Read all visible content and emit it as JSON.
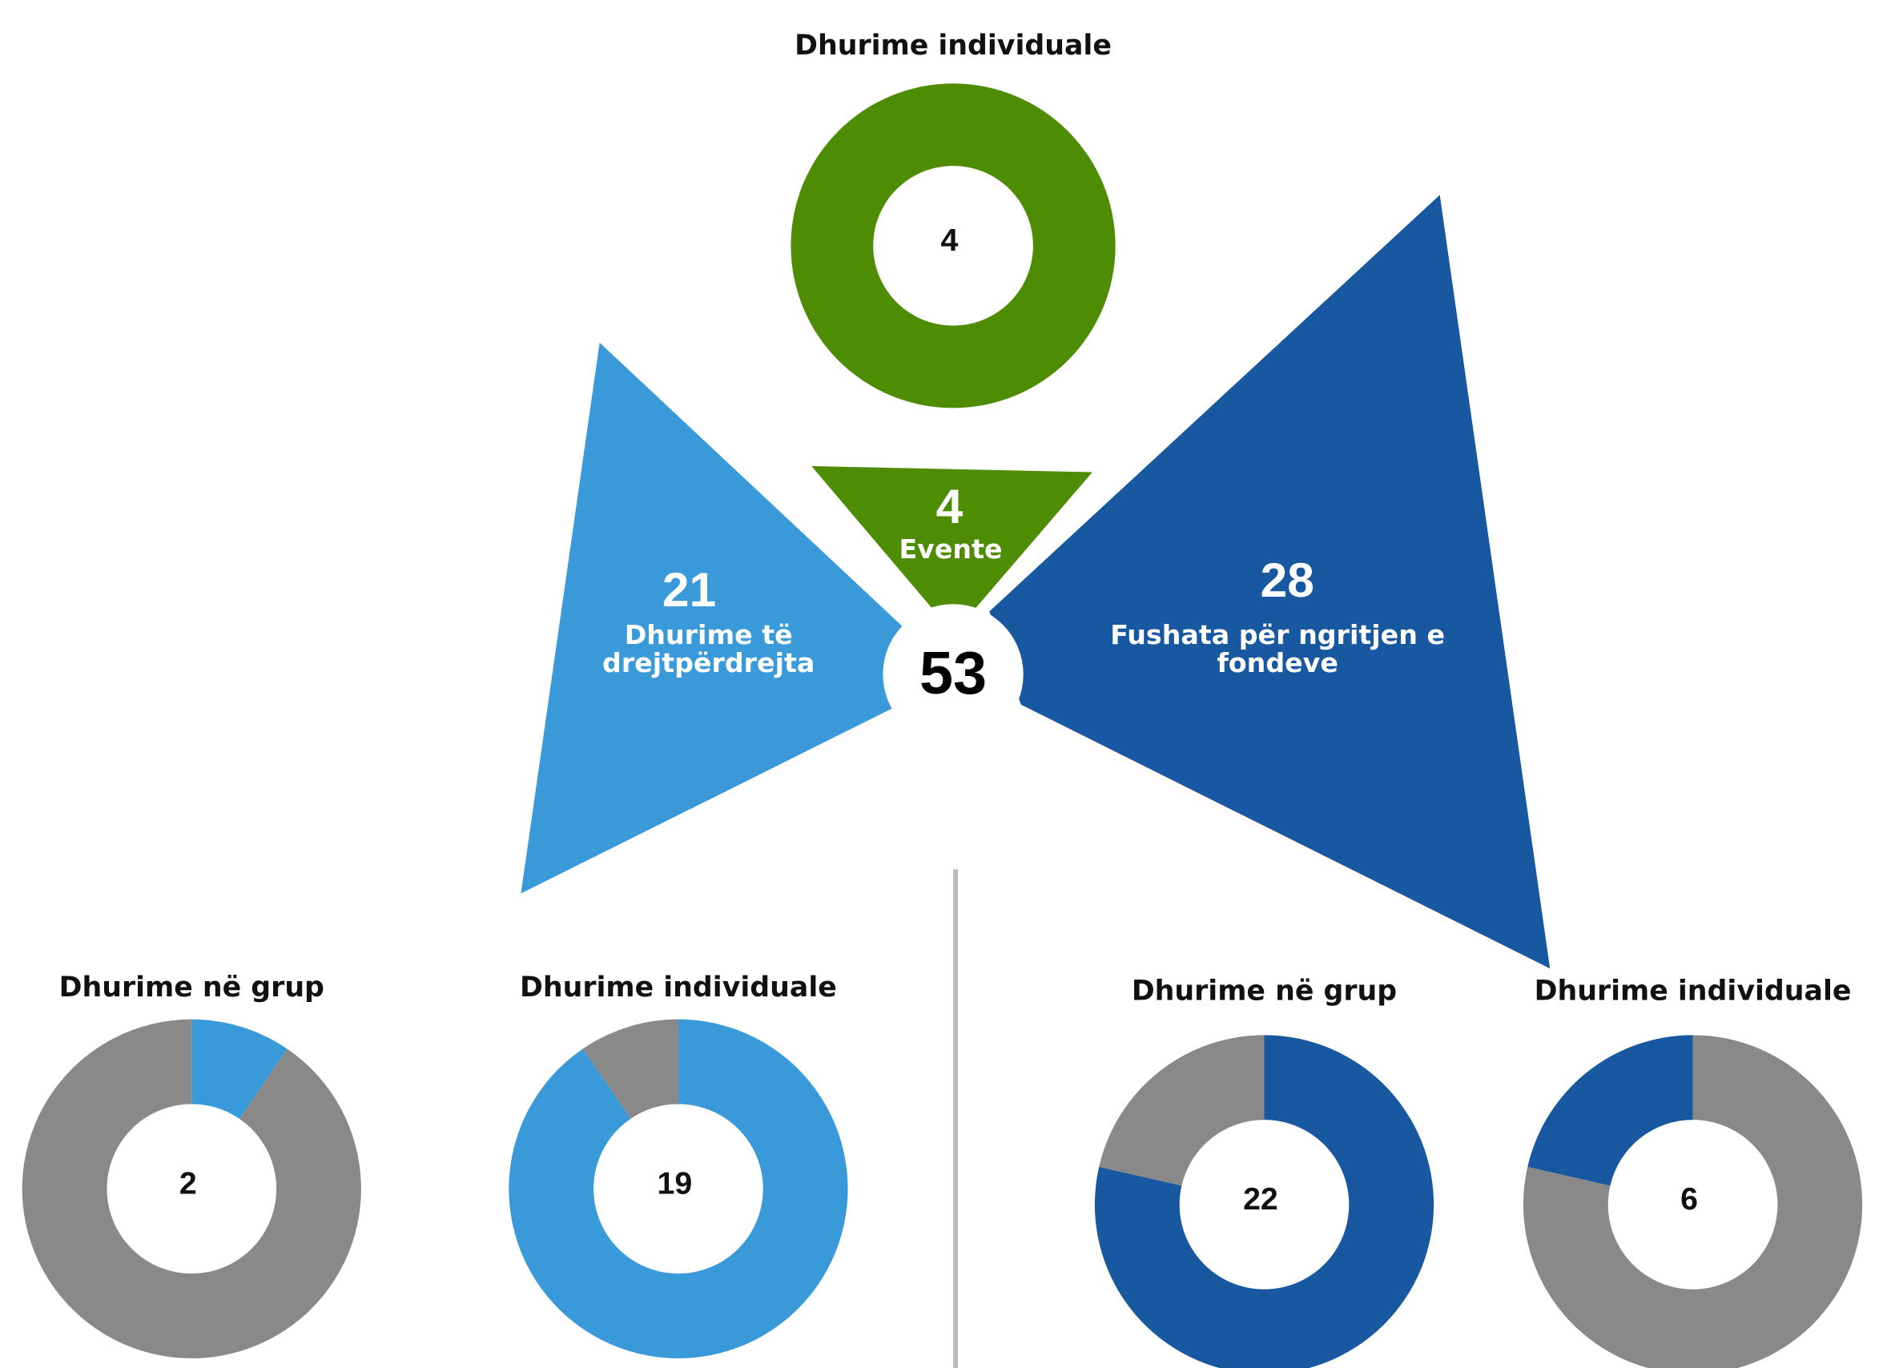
{
  "total": 53,
  "branches": [
    {
      "value": 21,
      "label": "Dhurime të drejtpërdrejta",
      "color": "#3a9ad9",
      "donuts": [
        {
          "title": "Dhurime në grup",
          "value": 2
        },
        {
          "title": "Dhurime individuale",
          "value": 19
        }
      ]
    },
    {
      "value": 4,
      "label": "Evente",
      "color": "#4e8c03",
      "donuts": [
        {
          "title": "Dhurime individuale",
          "value": 4
        }
      ]
    },
    {
      "value": 28,
      "label": "Fushata për ngritjen e fondeve",
      "color": "#1758a0",
      "donuts": [
        {
          "title": "Dhurime në grup",
          "value": 22
        },
        {
          "title": "Dhurime individuale",
          "value": 6
        }
      ]
    }
  ],
  "remainder_color": "#898989"
}
